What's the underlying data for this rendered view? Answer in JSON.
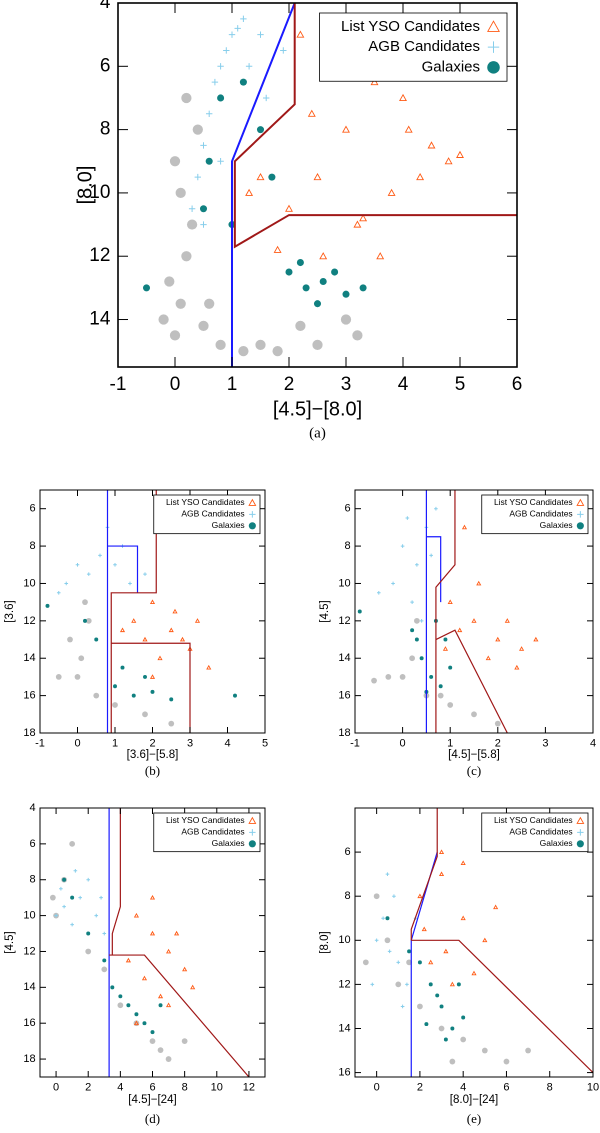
{
  "chart_data": [
    {
      "type": "scatter",
      "caption": "(a)",
      "xlabel": "[4.5]−[8.0]",
      "ylabel": "[8.0]",
      "xlim": [
        -1,
        6
      ],
      "ylim": [
        4,
        15.5
      ],
      "y_inverted": true,
      "xticks": [
        -1,
        0,
        1,
        2,
        3,
        4,
        5,
        6
      ],
      "yticks": [
        4,
        6,
        8,
        10,
        12,
        14
      ],
      "legend": "upper right",
      "series": [
        {
          "color": "#8a8a8a",
          "marker": "dot",
          "x": [
            0,
            0.1,
            0.2,
            -0.1,
            0.3,
            0.5,
            0.8,
            1.2,
            1.8,
            2.5,
            3.2,
            0.1,
            0.0,
            -0.2,
            0.4,
            1.5,
            2.2,
            3.0,
            0.2,
            0.6
          ],
          "y": [
            14.5,
            13.5,
            12,
            12.8,
            11,
            14.2,
            14.8,
            15,
            15,
            14.8,
            14.5,
            10,
            9,
            14,
            8,
            14.8,
            14.2,
            14,
            7,
            13.5
          ]
        },
        {
          "name": "List YSO Candidates",
          "color": "#ff5a14",
          "marker": "triangle",
          "x": [
            2.2,
            2.8,
            3.5,
            4.0,
            4.5,
            4.8,
            3.0,
            2.5,
            3.8,
            4.3,
            2.0,
            3.2,
            2.6,
            1.5,
            1.8,
            3.6,
            4.1,
            2.4,
            5.0,
            3.3,
            2.9,
            1.3
          ],
          "y": [
            5,
            6,
            6.5,
            7,
            8.5,
            9,
            8,
            9.5,
            10,
            9.5,
            10.5,
            11,
            12,
            9.5,
            11.8,
            12,
            8,
            7.5,
            8.8,
            10.8,
            5.5,
            10
          ]
        },
        {
          "name": "AGB Candidates",
          "color": "#87ceeb",
          "marker": "plus",
          "x": [
            0.3,
            0.4,
            0.5,
            0.6,
            0.7,
            0.8,
            0.9,
            1.0,
            1.1,
            1.2,
            1.3,
            1.5,
            0.5,
            0.8,
            1.6,
            1.9
          ],
          "y": [
            10.5,
            9.5,
            8.5,
            7.5,
            6.5,
            6,
            5.5,
            5,
            4.8,
            4.5,
            6,
            5,
            11,
            9,
            7,
            5.5
          ]
        },
        {
          "name": "Galaxies",
          "color": "#108080",
          "marker": "circle",
          "x": [
            0.6,
            0.8,
            1.2,
            1.5,
            2.0,
            2.3,
            2.6,
            3.0,
            3.3,
            2.5,
            2.2,
            1.0,
            0.5,
            -0.5,
            1.7,
            2.8
          ],
          "y": [
            9,
            7,
            6.5,
            8,
            12.5,
            13,
            12.8,
            13.2,
            13.0,
            13.5,
            12.2,
            11,
            10.5,
            13,
            9.5,
            12.5
          ]
        }
      ],
      "lines": [
        {
          "color": "#1a1aff",
          "x": [
            1,
            1,
            2.1
          ],
          "y": [
            15.5,
            9,
            4
          ]
        },
        {
          "color": "#a01818",
          "x": [
            2.1,
            2.1,
            1.05,
            1.05,
            2,
            6
          ],
          "y": [
            4,
            7.2,
            9,
            11.7,
            10.7,
            10.7
          ]
        }
      ]
    },
    {
      "type": "scatter",
      "caption": "(b)",
      "xlabel": "[3.6]−[5.8]",
      "ylabel": "[3.6]",
      "xlim": [
        -1,
        5
      ],
      "ylim": [
        5,
        18
      ],
      "y_inverted": true,
      "xticks": [
        -1,
        0,
        1,
        2,
        3,
        4,
        5
      ],
      "yticks": [
        6,
        8,
        10,
        12,
        14,
        16,
        18
      ],
      "legend": "upper right",
      "series": [
        {
          "color": "#8a8a8a",
          "marker": "dot",
          "x": [
            0,
            0.1,
            -0.2,
            0.3,
            0.5,
            1.0,
            1.8,
            2.5,
            0.2,
            -0.5
          ],
          "y": [
            15,
            14,
            13,
            12,
            16,
            16.5,
            17,
            17.5,
            11,
            15
          ]
        },
        {
          "name": "List YSO Candidates",
          "color": "#ff5a14",
          "marker": "triangle",
          "x": [
            1.5,
            2,
            2.5,
            3,
            2.2,
            1.8,
            2.8,
            3.5,
            1.2,
            2.6,
            3.2,
            2.0
          ],
          "y": [
            12,
            11,
            12.5,
            13.5,
            14,
            13,
            13,
            14.5,
            12.5,
            11.5,
            12,
            15
          ]
        },
        {
          "name": "AGB Candidates",
          "color": "#87ceeb",
          "marker": "plus",
          "x": [
            -0.3,
            0,
            0.3,
            0.6,
            1.0,
            1.4,
            1.8,
            0.8,
            -0.5,
            1.2
          ],
          "y": [
            10,
            9,
            9.5,
            8.5,
            9,
            10,
            9.5,
            7,
            10.5,
            8
          ]
        },
        {
          "name": "Galaxies",
          "color": "#108080",
          "marker": "circle",
          "x": [
            1,
            1.5,
            2,
            2.5,
            1.2,
            1.8,
            0.5,
            -0.8,
            4.2,
            0.2
          ],
          "y": [
            15.5,
            16,
            15.8,
            16.2,
            14.5,
            15,
            13,
            11.2,
            16,
            12
          ]
        }
      ],
      "lines": [
        {
          "color": "#1a1aff",
          "x": [
            0.8,
            0.8
          ],
          "y": [
            18,
            5
          ]
        },
        {
          "color": "#1a1aff",
          "x": [
            0.8,
            1.6,
            1.6
          ],
          "y": [
            8,
            8,
            10.5
          ]
        },
        {
          "color": "#a01818",
          "x": [
            2.1,
            2.1,
            0.9,
            0.9
          ],
          "y": [
            5,
            10.5,
            10.5,
            18
          ]
        },
        {
          "color": "#a01818",
          "x": [
            0.9,
            3,
            3
          ],
          "y": [
            13.2,
            13.2,
            18
          ]
        }
      ]
    },
    {
      "type": "scatter",
      "caption": "(c)",
      "xlabel": "[4.5]−[5.8]",
      "ylabel": "[4.5]",
      "xlim": [
        -1,
        4
      ],
      "ylim": [
        5,
        18
      ],
      "y_inverted": true,
      "xticks": [
        -1,
        0,
        1,
        2,
        3,
        4
      ],
      "yticks": [
        6,
        8,
        10,
        12,
        14,
        16,
        18
      ],
      "legend": "upper right",
      "series": [
        {
          "color": "#8a8a8a",
          "marker": "dot",
          "x": [
            0,
            0.2,
            -0.3,
            0.5,
            1.0,
            1.5,
            2.0,
            0.3,
            0.8,
            -0.6
          ],
          "y": [
            15,
            14,
            15,
            16,
            16.5,
            17,
            17.5,
            12,
            16,
            15.2
          ]
        },
        {
          "name": "List YSO Candidates",
          "color": "#ff5a14",
          "marker": "triangle",
          "x": [
            1,
            1.5,
            2,
            2.5,
            1.8,
            1.2,
            2.8,
            2.2,
            1.6,
            0.9,
            2.4,
            1.3
          ],
          "y": [
            11,
            12,
            13,
            13.5,
            14,
            12.5,
            13,
            12,
            10,
            13.5,
            14.5,
            7
          ]
        },
        {
          "name": "AGB Candidates",
          "color": "#87ceeb",
          "marker": "plus",
          "x": [
            -0.2,
            0,
            0.3,
            0.5,
            0.2,
            0.4,
            0.7,
            -0.5,
            0.1,
            0.6
          ],
          "y": [
            10,
            8,
            9,
            7,
            11,
            12,
            6,
            10.5,
            6.5,
            8.5
          ]
        },
        {
          "name": "Galaxies",
          "color": "#108080",
          "marker": "circle",
          "x": [
            0.4,
            0.6,
            0.8,
            1.0,
            0.7,
            0.3,
            -0.9,
            0.2,
            0.9,
            0.5
          ],
          "y": [
            14,
            15,
            15.5,
            14.5,
            12,
            13,
            11.5,
            12.5,
            13,
            15.8
          ]
        }
      ],
      "lines": [
        {
          "color": "#1a1aff",
          "x": [
            0.5,
            0.5
          ],
          "y": [
            18,
            5
          ]
        },
        {
          "color": "#1a1aff",
          "x": [
            0.5,
            0.8,
            0.8
          ],
          "y": [
            7.5,
            7.5,
            11
          ]
        },
        {
          "color": "#a01818",
          "x": [
            1.1,
            1.1,
            0.7,
            0.7
          ],
          "y": [
            5,
            9,
            10.2,
            18
          ]
        },
        {
          "color": "#a01818",
          "x": [
            0.7,
            1.1,
            2.2
          ],
          "y": [
            13,
            12.5,
            18
          ]
        }
      ]
    },
    {
      "type": "scatter",
      "caption": "(d)",
      "xlabel": "[4.5]−[24]",
      "ylabel": "[4.5]",
      "xlim": [
        -1,
        13
      ],
      "ylim": [
        4,
        19
      ],
      "y_inverted": true,
      "xticks": [
        0,
        2,
        4,
        6,
        8,
        10,
        12
      ],
      "yticks": [
        4,
        6,
        8,
        10,
        12,
        14,
        16,
        18
      ],
      "legend": "upper right",
      "series": [
        {
          "color": "#8a8a8a",
          "marker": "dot",
          "x": [
            0,
            0.5,
            2,
            4,
            6,
            6.5,
            7,
            8,
            5,
            1,
            -0.2,
            3
          ],
          "y": [
            10,
            8,
            12,
            15,
            17,
            17.5,
            18,
            17,
            16,
            6,
            9,
            13
          ]
        },
        {
          "name": "List YSO Candidates",
          "color": "#ff5a14",
          "marker": "triangle",
          "x": [
            5,
            6,
            7,
            8,
            5.5,
            6.5,
            7.5,
            4.5,
            6,
            8.5,
            7,
            5
          ],
          "y": [
            10,
            11,
            12,
            13,
            13.5,
            14.5,
            11,
            12.5,
            9,
            14,
            15,
            16
          ]
        },
        {
          "name": "AGB Candidates",
          "color": "#87ceeb",
          "marker": "plus",
          "x": [
            0,
            0.5,
            1,
            1.5,
            2,
            2.5,
            3,
            1.2,
            0.3,
            2.8
          ],
          "y": [
            10,
            9.5,
            10.5,
            9,
            8,
            10,
            11,
            7.5,
            8.5,
            9
          ]
        },
        {
          "name": "Galaxies",
          "color": "#108080",
          "marker": "circle",
          "x": [
            3.5,
            4.5,
            5,
            5.5,
            6,
            4,
            3,
            2,
            1,
            0.5,
            6.5
          ],
          "y": [
            14,
            15,
            15.5,
            16,
            16.5,
            14.5,
            12.5,
            11,
            9,
            8,
            15
          ]
        }
      ],
      "lines": [
        {
          "color": "#1a1aff",
          "x": [
            3.3,
            3.3
          ],
          "y": [
            19,
            4
          ]
        },
        {
          "color": "#a01818",
          "x": [
            4,
            4,
            3.5,
            3.5
          ],
          "y": [
            4,
            9.5,
            11,
            12.2
          ]
        },
        {
          "color": "#a01818",
          "x": [
            3.3,
            5.5,
            12
          ],
          "y": [
            12.2,
            12.2,
            19
          ]
        }
      ]
    },
    {
      "type": "scatter",
      "caption": "(e)",
      "xlabel": "[8.0]−[24]",
      "ylabel": "[8.0]",
      "xlim": [
        -1,
        10
      ],
      "ylim": [
        4,
        16.2
      ],
      "y_inverted": true,
      "xticks": [
        0,
        2,
        4,
        6,
        8,
        10
      ],
      "yticks": [
        6,
        8,
        10,
        12,
        14,
        16
      ],
      "legend": "upper right",
      "series": [
        {
          "color": "#8a8a8a",
          "marker": "dot",
          "x": [
            0,
            0.5,
            1,
            2,
            3,
            4,
            5,
            6,
            7,
            -0.5,
            1.5,
            3.5
          ],
          "y": [
            8,
            10,
            12,
            13,
            14,
            14.5,
            15,
            15.5,
            15,
            11,
            11,
            15.5
          ]
        },
        {
          "name": "List YSO Candidates",
          "color": "#ff5a14",
          "marker": "triangle",
          "x": [
            2,
            3,
            4,
            5,
            2.5,
            3.5,
            4.5,
            3,
            5.5,
            2.2,
            4,
            3.2
          ],
          "y": [
            8,
            7,
            9,
            10,
            11,
            12,
            11.5,
            6,
            8.5,
            9.5,
            6.5,
            10.5
          ]
        },
        {
          "name": "AGB Candidates",
          "color": "#87ceeb",
          "marker": "plus",
          "x": [
            0,
            0.3,
            0.6,
            1.0,
            1.4,
            0.8,
            -0.2,
            1.8,
            0.5,
            1.2
          ],
          "y": [
            10,
            9,
            10.5,
            11,
            12,
            8,
            12,
            9,
            7,
            13
          ]
        },
        {
          "name": "Galaxies",
          "color": "#108080",
          "marker": "circle",
          "x": [
            2,
            2.5,
            3,
            3.5,
            4,
            2.8,
            3.2,
            1.5,
            0.5,
            3.8,
            2.3
          ],
          "y": [
            11,
            12,
            13,
            14,
            13.5,
            12.5,
            14.5,
            10.5,
            9,
            12,
            13.8
          ]
        }
      ],
      "lines": [
        {
          "color": "#1a1aff",
          "x": [
            1.6,
            1.6,
            2.8
          ],
          "y": [
            16.2,
            10,
            6
          ]
        },
        {
          "color": "#a01818",
          "x": [
            2.8,
            2.8,
            1.6,
            1.6
          ],
          "y": [
            4,
            6.2,
            9.5,
            10
          ]
        },
        {
          "color": "#a01818",
          "x": [
            1.6,
            3.8,
            10
          ],
          "y": [
            10,
            10,
            16
          ]
        }
      ]
    }
  ]
}
